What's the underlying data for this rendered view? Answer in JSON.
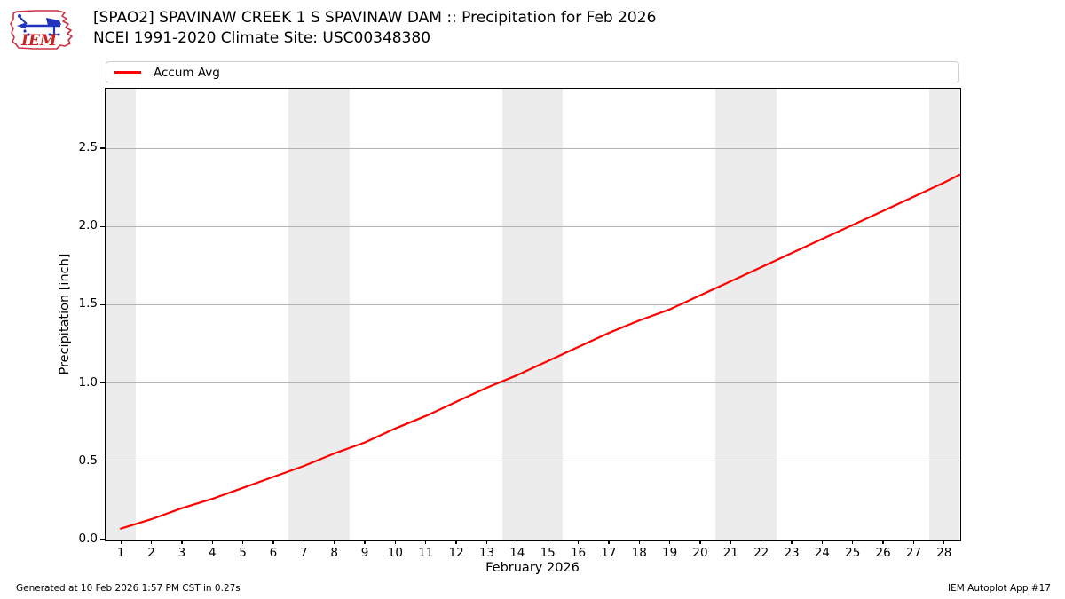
{
  "header": {
    "title_line1": "[SPAO2] SPAVINAW CREEK 1 S SPAVINAW DAM :: Precipitation for Feb 2026",
    "title_line2": "NCEI 1991-2020 Climate Site: USC00348380",
    "logo_text": "IEM"
  },
  "legend": {
    "items": [
      {
        "label": "Accum Avg",
        "color": "#ff0000"
      }
    ]
  },
  "footer": {
    "left": "Generated at 10 Feb 2026 1:57 PM CST in 0.27s",
    "right": "IEM Autoplot App #17"
  },
  "chart_data": {
    "type": "line",
    "title": "[SPAO2] SPAVINAW CREEK 1 S SPAVINAW DAM :: Precipitation for Feb 2026",
    "subtitle": "NCEI 1991-2020 Climate Site: USC00348380",
    "xlabel": "February 2026",
    "ylabel": "Precipitation [inch]",
    "xlim": [
      0.5,
      28.5
    ],
    "ylim": [
      0,
      2.88
    ],
    "xticks": [
      1,
      2,
      3,
      4,
      5,
      6,
      7,
      8,
      9,
      10,
      11,
      12,
      13,
      14,
      15,
      16,
      17,
      18,
      19,
      20,
      21,
      22,
      23,
      24,
      25,
      26,
      27,
      28
    ],
    "yticks": [
      0.0,
      0.5,
      1.0,
      1.5,
      2.0,
      2.5
    ],
    "ytick_labels": [
      "0.0",
      "0.5",
      "1.0",
      "1.5",
      "2.0",
      "2.5"
    ],
    "grid": "horizontal-only",
    "legend_position": "top",
    "weekend_bands": [
      [
        0.5,
        1.5
      ],
      [
        6.5,
        8.5
      ],
      [
        13.5,
        15.5
      ],
      [
        20.5,
        22.5
      ],
      [
        27.5,
        28.5
      ]
    ],
    "band_color": "#ececec",
    "grid_color": "#b4b4b4",
    "series": [
      {
        "name": "Accum Avg",
        "color": "#ff0000",
        "points": [
          [
            1,
            0.07
          ],
          [
            2,
            0.13
          ],
          [
            3,
            0.2
          ],
          [
            4,
            0.26
          ],
          [
            5,
            0.33
          ],
          [
            6,
            0.4
          ],
          [
            7,
            0.47
          ],
          [
            8,
            0.55
          ],
          [
            9,
            0.62
          ],
          [
            10,
            0.71
          ],
          [
            11,
            0.79
          ],
          [
            12,
            0.88
          ],
          [
            13,
            0.97
          ],
          [
            14,
            1.05
          ],
          [
            15,
            1.14
          ],
          [
            16,
            1.23
          ],
          [
            17,
            1.32
          ],
          [
            18,
            1.4
          ],
          [
            19,
            1.47
          ],
          [
            20,
            1.56
          ],
          [
            21,
            1.65
          ],
          [
            22,
            1.74
          ],
          [
            23,
            1.83
          ],
          [
            24,
            1.92
          ],
          [
            25,
            2.01
          ],
          [
            26,
            2.1
          ],
          [
            27,
            2.19
          ],
          [
            28,
            2.28
          ],
          [
            28.5,
            2.33
          ]
        ]
      }
    ]
  }
}
